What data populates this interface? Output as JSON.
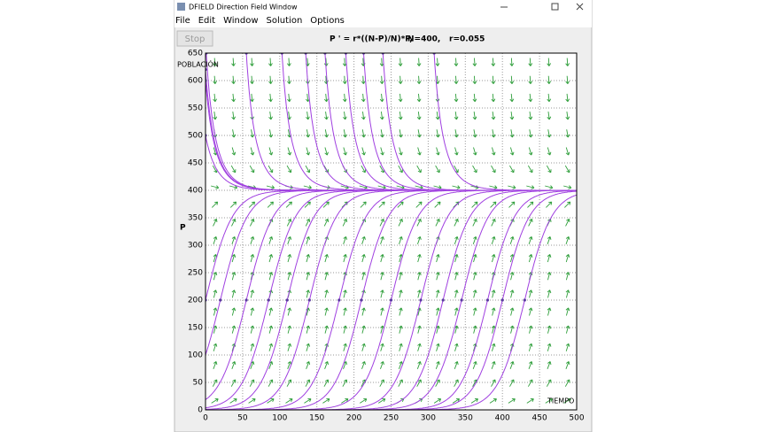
{
  "window": {
    "title": "DFIELD Direction Field Window",
    "menu": [
      "File",
      "Edit",
      "Window",
      "Solution",
      "Options"
    ],
    "stop_button": "Stop"
  },
  "chart_data": {
    "type": "direction_field",
    "equation": "P ' = r*((N-P)/N)*P,",
    "N_label": "N=400,",
    "r_label": "r=0.055",
    "N": 400,
    "r": 0.055,
    "x_label": "TIEMPO",
    "y_label": "POBLACIÓN",
    "y_axis_name": "P",
    "xlim": [
      0,
      500
    ],
    "ylim": [
      0,
      650
    ],
    "xticks": [
      0,
      50,
      100,
      150,
      200,
      250,
      300,
      350,
      400,
      450,
      500
    ],
    "yticks": [
      0,
      50,
      100,
      150,
      200,
      250,
      300,
      350,
      400,
      450,
      500,
      550,
      600,
      650
    ],
    "grid": true,
    "arrow_color": "#2e9e3a",
    "curve_color": "#a040e0",
    "solutions": [
      {
        "t0": 0,
        "p0": 620
      },
      {
        "t0": 0,
        "p0": 600
      },
      {
        "t0": 0,
        "p0": 500
      },
      {
        "t0": 1,
        "p0": 650
      },
      {
        "t0": 55,
        "p0": 650
      },
      {
        "t0": 103,
        "p0": 650
      },
      {
        "t0": 135,
        "p0": 650
      },
      {
        "t0": 161,
        "p0": 650
      },
      {
        "t0": 189,
        "p0": 650
      },
      {
        "t0": 213,
        "p0": 650
      },
      {
        "t0": 239,
        "p0": 650
      },
      {
        "t0": 308,
        "p0": 650
      },
      {
        "t0": 0,
        "p0": 200
      },
      {
        "t0": 20,
        "p0": 200
      },
      {
        "t0": 55,
        "p0": 200
      },
      {
        "t0": 85,
        "p0": 200
      },
      {
        "t0": 110,
        "p0": 200
      },
      {
        "t0": 140,
        "p0": 200
      },
      {
        "t0": 180,
        "p0": 200
      },
      {
        "t0": 210,
        "p0": 200
      },
      {
        "t0": 250,
        "p0": 200
      },
      {
        "t0": 290,
        "p0": 200
      },
      {
        "t0": 320,
        "p0": 200
      },
      {
        "t0": 345,
        "p0": 200
      },
      {
        "t0": 380,
        "p0": 200
      },
      {
        "t0": 400,
        "p0": 200
      },
      {
        "t0": 430,
        "p0": 200
      }
    ]
  }
}
